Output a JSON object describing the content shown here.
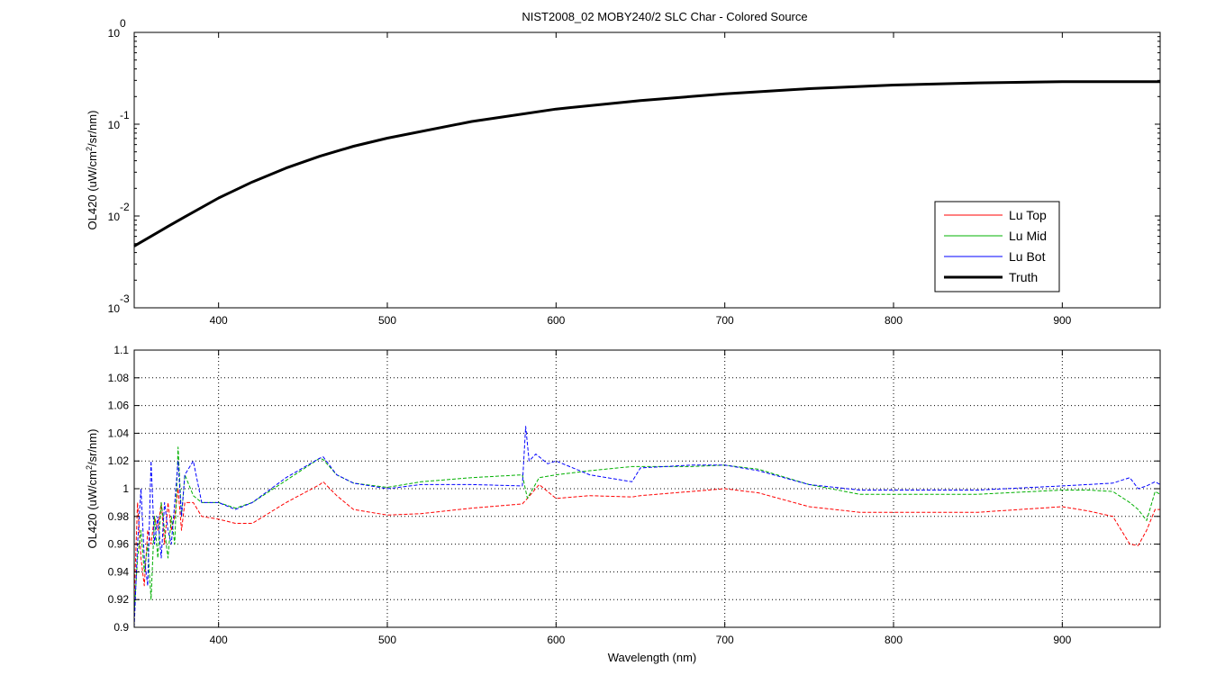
{
  "figure": {
    "background": "#ffffff",
    "axes_color": "#000000",
    "grid_color": "#000000"
  },
  "chart_data": [
    {
      "type": "line",
      "title": "NIST2008_02  MOBY240/2 SLC Char - Colored Source",
      "xlabel": "",
      "ylabel_parts": [
        "OL420  (uW/cm",
        "2",
        "/sr/nm)"
      ],
      "xlim": [
        350,
        958
      ],
      "ylim": [
        0.001,
        1
      ],
      "yscale": "log",
      "grid": false,
      "legend_placement": "lower-right",
      "x_ticks": [
        400,
        500,
        600,
        700,
        800,
        900
      ],
      "y_ticks": [
        {
          "value": 1,
          "base": "10",
          "exp": "0"
        },
        {
          "value": 0.1,
          "base": "10",
          "exp": "-1"
        },
        {
          "value": 0.01,
          "base": "10",
          "exp": "-2"
        },
        {
          "value": 0.001,
          "base": "10",
          "exp": "-3"
        }
      ],
      "x": [
        350,
        360,
        370,
        380,
        400,
        420,
        440,
        460,
        480,
        500,
        550,
        600,
        650,
        700,
        750,
        800,
        850,
        900,
        958
      ],
      "series": [
        {
          "name": "Lu Top",
          "color": "#ff0000",
          "values": [
            0.0047,
            0.006,
            0.0077,
            0.0098,
            0.0156,
            0.0233,
            0.033,
            0.0445,
            0.057,
            0.07,
            0.106,
            0.145,
            0.18,
            0.213,
            0.243,
            0.265,
            0.28,
            0.288,
            0.288
          ]
        },
        {
          "name": "Lu Mid",
          "color": "#00b000",
          "values": [
            0.0048,
            0.0061,
            0.0078,
            0.0099,
            0.0158,
            0.0236,
            0.0334,
            0.045,
            0.0578,
            0.071,
            0.1075,
            0.1465,
            0.182,
            0.215,
            0.245,
            0.268,
            0.283,
            0.291,
            0.291
          ]
        },
        {
          "name": "Lu Bot",
          "color": "#0000ff",
          "values": [
            0.0048,
            0.0061,
            0.0078,
            0.0099,
            0.0158,
            0.0236,
            0.0334,
            0.045,
            0.0578,
            0.071,
            0.1075,
            0.1465,
            0.182,
            0.215,
            0.245,
            0.268,
            0.283,
            0.291,
            0.291
          ]
        },
        {
          "name": "Truth",
          "color": "#000000",
          "values": [
            0.0047,
            0.006,
            0.0077,
            0.0098,
            0.0157,
            0.0235,
            0.0333,
            0.0448,
            0.0575,
            0.0705,
            0.107,
            0.146,
            0.181,
            0.214,
            0.244,
            0.267,
            0.282,
            0.29,
            0.29
          ]
        }
      ]
    },
    {
      "type": "line",
      "title": "",
      "xlabel": "Wavelength (nm)",
      "ylabel_parts": [
        "OL420  (uW/cm",
        "2",
        "/sr/nm)"
      ],
      "xlim": [
        350,
        958
      ],
      "ylim": [
        0.9,
        1.1
      ],
      "yscale": "linear",
      "grid": true,
      "x_ticks": [
        400,
        500,
        600,
        700,
        800,
        900
      ],
      "y_ticks": [
        0.9,
        0.92,
        0.94,
        0.96,
        0.98,
        1,
        1.02,
        1.04,
        1.06,
        1.08,
        1.1
      ],
      "series": [
        {
          "name": "Lu Top",
          "color": "#ff0000",
          "x": [
            350,
            352,
            354,
            356,
            358,
            360,
            362,
            364,
            366,
            368,
            370,
            372,
            374,
            376,
            378,
            380,
            385,
            390,
            400,
            410,
            420,
            440,
            460,
            462,
            470,
            480,
            500,
            520,
            550,
            580,
            583,
            590,
            600,
            620,
            645,
            650,
            680,
            700,
            720,
            750,
            780,
            800,
            850,
            900,
            915,
            930,
            940,
            945,
            950,
            955,
            958
          ],
          "values": [
            0.92,
            0.99,
            0.95,
            0.93,
            0.97,
            0.96,
            0.98,
            0.97,
            0.99,
            0.96,
            0.99,
            0.97,
            0.98,
            1.0,
            0.97,
            0.99,
            0.99,
            0.98,
            0.978,
            0.975,
            0.975,
            0.99,
            1.003,
            1.005,
            0.995,
            0.985,
            0.981,
            0.982,
            0.986,
            0.989,
            0.993,
            1.003,
            0.993,
            0.995,
            0.994,
            0.995,
            0.998,
            1.0,
            0.997,
            0.987,
            0.983,
            0.983,
            0.983,
            0.987,
            0.984,
            0.98,
            0.96,
            0.959,
            0.97,
            0.985,
            0.985
          ]
        },
        {
          "name": "Lu Mid",
          "color": "#00b000",
          "x": [
            350,
            352,
            354,
            356,
            358,
            360,
            362,
            364,
            366,
            368,
            370,
            372,
            374,
            376,
            378,
            380,
            385,
            390,
            400,
            410,
            420,
            440,
            460,
            462,
            470,
            480,
            500,
            520,
            550,
            580,
            583,
            590,
            600,
            620,
            645,
            650,
            680,
            700,
            720,
            750,
            780,
            800,
            850,
            900,
            915,
            930,
            940,
            945,
            950,
            955,
            958
          ],
          "values": [
            0.91,
            0.95,
            0.97,
            0.94,
            0.96,
            0.92,
            0.98,
            0.95,
            0.99,
            0.97,
            0.95,
            0.98,
            0.96,
            1.03,
            0.98,
            1.01,
            0.995,
            0.99,
            0.99,
            0.986,
            0.99,
            1.006,
            1.022,
            1.021,
            1.01,
            1.004,
            1.001,
            1.005,
            1.008,
            1.01,
            0.993,
            1.008,
            1.01,
            1.013,
            1.016,
            1.016,
            1.016,
            1.017,
            1.014,
            1.003,
            0.996,
            0.996,
            0.996,
            0.999,
            0.999,
            0.998,
            0.99,
            0.985,
            0.977,
            0.998,
            0.996
          ]
        },
        {
          "name": "Lu Bot",
          "color": "#0000ff",
          "x": [
            350,
            352,
            354,
            356,
            358,
            360,
            362,
            364,
            366,
            368,
            370,
            372,
            374,
            376,
            378,
            380,
            385,
            390,
            400,
            410,
            420,
            440,
            460,
            462,
            470,
            480,
            500,
            520,
            550,
            580,
            582,
            584,
            588,
            595,
            600,
            620,
            645,
            650,
            680,
            700,
            720,
            750,
            780,
            800,
            850,
            900,
            915,
            930,
            940,
            945,
            950,
            955,
            958
          ],
          "values": [
            0.9,
            0.96,
            1.0,
            0.95,
            0.93,
            1.02,
            0.96,
            0.98,
            0.95,
            0.99,
            0.97,
            0.96,
            0.99,
            1.02,
            0.98,
            1.01,
            1.02,
            0.99,
            0.99,
            0.985,
            0.99,
            1.008,
            1.022,
            1.023,
            1.01,
            1.004,
            1.0,
            1.003,
            1.003,
            1.002,
            1.045,
            1.02,
            1.025,
            1.018,
            1.02,
            1.01,
            1.005,
            1.015,
            1.017,
            1.017,
            1.013,
            1.003,
            0.999,
            0.999,
            0.999,
            1.002,
            1.003,
            1.004,
            1.008,
            1.0,
            1.002,
            1.005,
            1.003
          ]
        }
      ]
    }
  ],
  "legend": {
    "entries": [
      {
        "label": "Lu Top",
        "color": "#ff0000",
        "width": 1
      },
      {
        "label": "Lu Mid",
        "color": "#00b000",
        "width": 1
      },
      {
        "label": "Lu Bot",
        "color": "#0000ff",
        "width": 1
      },
      {
        "label": "Truth",
        "color": "#000000",
        "width": 3
      }
    ]
  }
}
